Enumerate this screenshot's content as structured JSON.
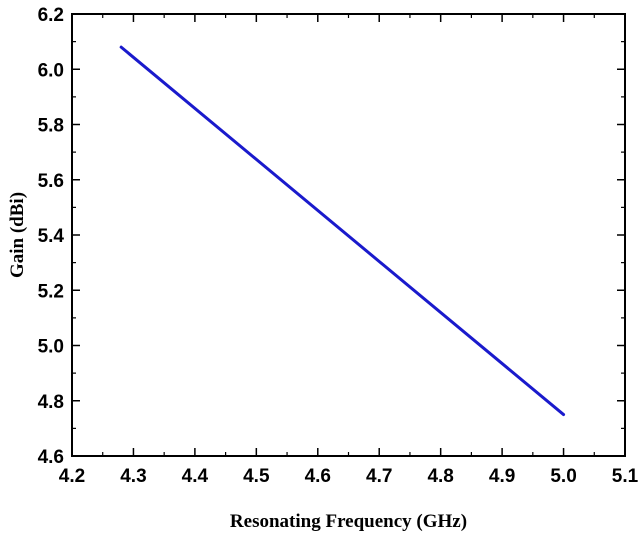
{
  "chart_data": {
    "type": "line",
    "title": "",
    "xlabel": "Resonating Frequency (GHz)",
    "ylabel": "Gain (dBi)",
    "xlim": [
      4.2,
      5.1
    ],
    "ylim": [
      4.6,
      6.2
    ],
    "x_ticks": [
      "4.2",
      "4.3",
      "4.4",
      "4.5",
      "4.6",
      "4.7",
      "4.8",
      "4.9",
      "5.0",
      "5.1"
    ],
    "y_ticks": [
      "4.6",
      "4.8",
      "5.0",
      "5.2",
      "5.4",
      "5.6",
      "5.8",
      "6.0",
      "6.2"
    ],
    "grid": false,
    "legend": "none",
    "series": [
      {
        "color": "#1a1acc",
        "x": [
          4.28,
          5.0
        ],
        "y": [
          6.08,
          4.75
        ]
      }
    ]
  }
}
